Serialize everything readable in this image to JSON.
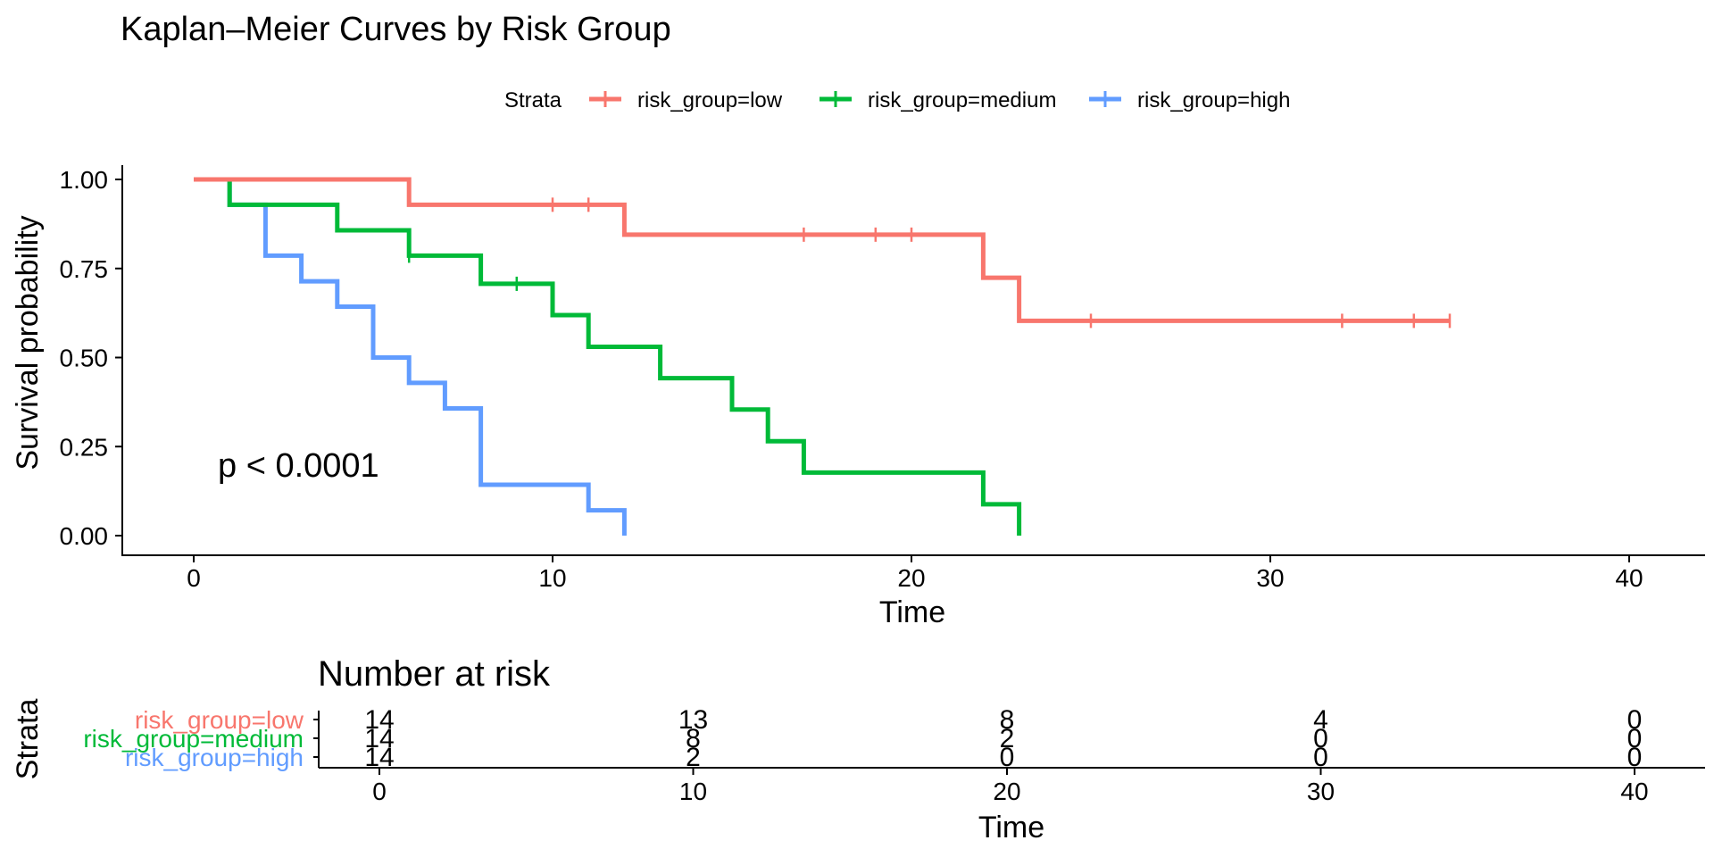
{
  "chart_data": [
    {
      "type": "line",
      "subtype": "kaplan-meier",
      "title": "Kaplan–Meier Curves by Risk Group",
      "xlabel": "Time",
      "ylabel": "Survival probability",
      "xlim": [
        -2,
        42
      ],
      "ylim": [
        -0.05,
        1.05
      ],
      "xticks": [
        0,
        10,
        20,
        30,
        40
      ],
      "yticks": [
        0,
        0.25,
        0.5,
        0.75,
        1.0
      ],
      "ytick_labels": [
        "0.00",
        "0.25",
        "0.50",
        "0.75",
        "1.00"
      ],
      "xtick_labels": [
        "0",
        "10",
        "20",
        "30",
        "40"
      ],
      "legend": {
        "title": "Strata",
        "position": "top"
      },
      "annotation": "p < 0.0001",
      "grid": false,
      "series": [
        {
          "name": "risk_group=low",
          "color": "#F8766D",
          "steps": [
            [
              0,
              1.0
            ],
            [
              6,
              0.929
            ],
            [
              12,
              0.845
            ],
            [
              22,
              0.724
            ],
            [
              23,
              0.603
            ],
            [
              35,
              0.603
            ]
          ],
          "censored": [
            [
              10,
              0.929
            ],
            [
              11,
              0.929
            ],
            [
              17,
              0.845
            ],
            [
              19,
              0.845
            ],
            [
              20,
              0.845
            ],
            [
              25,
              0.603
            ],
            [
              32,
              0.603
            ],
            [
              34,
              0.603
            ],
            [
              35,
              0.603
            ]
          ]
        },
        {
          "name": "risk_group=medium",
          "color": "#00BA38",
          "steps": [
            [
              0,
              1.0
            ],
            [
              1,
              0.929
            ],
            [
              4,
              0.857
            ],
            [
              6,
              0.786
            ],
            [
              8,
              0.707
            ],
            [
              10,
              0.619
            ],
            [
              11,
              0.53
            ],
            [
              13,
              0.442
            ],
            [
              15,
              0.354
            ],
            [
              16,
              0.265
            ],
            [
              17,
              0.177
            ],
            [
              22,
              0.088
            ],
            [
              23,
              0.0
            ]
          ],
          "censored": [
            [
              6,
              0.786
            ],
            [
              9,
              0.707
            ]
          ]
        },
        {
          "name": "risk_group=high",
          "color": "#619CFF",
          "steps": [
            [
              0,
              1.0
            ],
            [
              1,
              0.929
            ],
            [
              2,
              0.786
            ],
            [
              3,
              0.714
            ],
            [
              4,
              0.643
            ],
            [
              5,
              0.5
            ],
            [
              6,
              0.429
            ],
            [
              7,
              0.357
            ],
            [
              8,
              0.143
            ],
            [
              11,
              0.071
            ],
            [
              12,
              0.0
            ]
          ],
          "censored": []
        }
      ]
    },
    {
      "type": "table",
      "title": "Number at risk",
      "xlabel": "Time",
      "ylabel": "Strata",
      "xlim": [
        -2,
        42
      ],
      "xticks": [
        0,
        10,
        20,
        30,
        40
      ],
      "xtick_labels": [
        "0",
        "10",
        "20",
        "30",
        "40"
      ],
      "rows": [
        {
          "name": "risk_group=low",
          "color": "#F8766D",
          "values": [
            14,
            13,
            8,
            4,
            0
          ]
        },
        {
          "name": "risk_group=medium",
          "color": "#00BA38",
          "values": [
            14,
            8,
            2,
            0,
            0
          ]
        },
        {
          "name": "risk_group=high",
          "color": "#619CFF",
          "values": [
            14,
            2,
            0,
            0,
            0
          ]
        }
      ]
    }
  ]
}
